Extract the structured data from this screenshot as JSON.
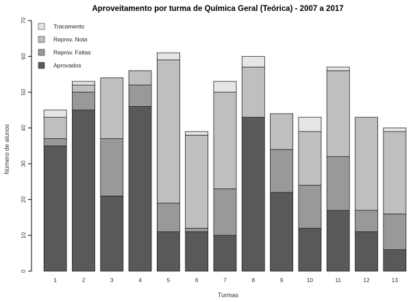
{
  "chart_data": {
    "type": "bar",
    "stacked": true,
    "title": "Aproveitamento por turma de Química Geral (Teórica) - 2007 a 2017",
    "xlabel": "Turmas",
    "ylabel": "Número de alunos",
    "ylim": [
      0,
      70
    ],
    "yticks": [
      0,
      10,
      20,
      30,
      40,
      50,
      60,
      70
    ],
    "grid": false,
    "legend_position": "top-left",
    "categories": [
      "1",
      "2",
      "3",
      "4",
      "5",
      "6",
      "7",
      "8",
      "9",
      "10",
      "11",
      "12",
      "13"
    ],
    "series": [
      {
        "name": "Aprovados",
        "color": "#595959",
        "values": [
          35,
          45,
          21,
          46,
          11,
          11,
          10,
          43,
          22,
          12,
          17,
          11,
          6
        ]
      },
      {
        "name": "Reprov. Faltas",
        "color": "#999999",
        "values": [
          2,
          5,
          16,
          6,
          8,
          1,
          13,
          0,
          12,
          12,
          15,
          6,
          10
        ]
      },
      {
        "name": "Reprov. Nota",
        "color": "#bfbfbf",
        "values": [
          6,
          2,
          17,
          4,
          40,
          26,
          27,
          14,
          10,
          15,
          24,
          26,
          23
        ]
      },
      {
        "name": "Tracamento",
        "color": "#e6e6e6",
        "values": [
          2,
          1,
          0,
          0,
          2,
          1,
          3,
          3,
          0,
          4,
          1,
          0,
          1
        ]
      }
    ],
    "legend_order": [
      "Tracamento",
      "Reprov. Nota",
      "Reprov. Faltas",
      "Aprovados"
    ]
  }
}
